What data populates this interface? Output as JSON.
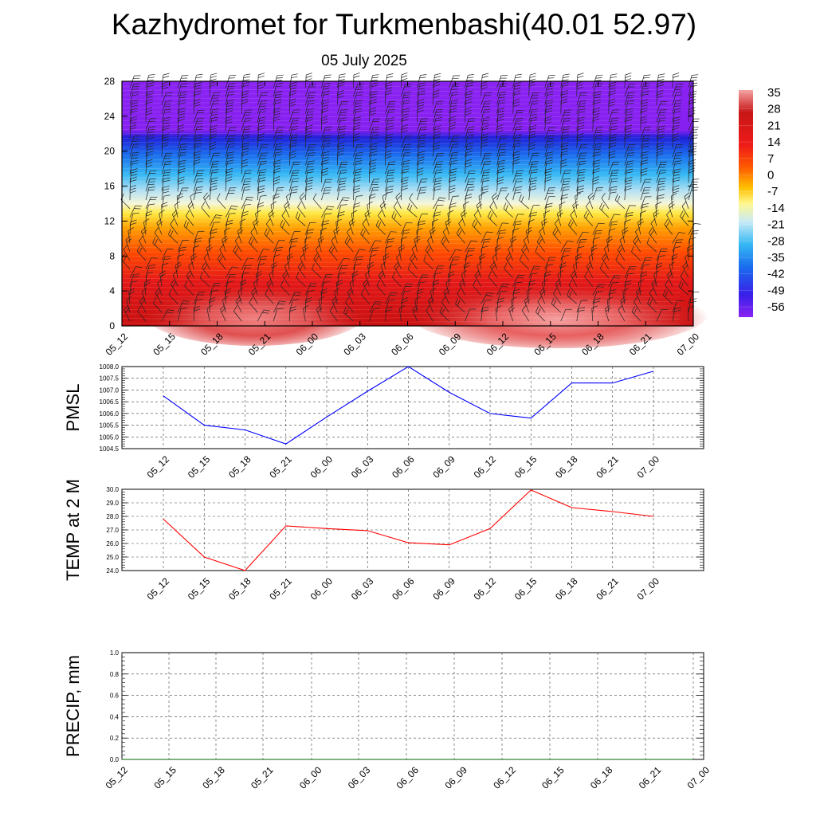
{
  "title": "Kazhydromet for Turkmenbashi(40.01 52.97)",
  "subtitle": "05 July 2025",
  "time_labels": [
    "05_12",
    "05_15",
    "05_18",
    "05_21",
    "06_00",
    "06_03",
    "06_06",
    "06_09",
    "06_12",
    "06_15",
    "06_18",
    "06_21",
    "07_00"
  ],
  "chart_data": [
    {
      "type": "heatmap",
      "y_ticks": [
        0,
        4,
        8,
        12,
        16,
        20,
        24,
        28
      ],
      "ylim": [
        0,
        28
      ],
      "colorbar": {
        "labels": [
          "35",
          "28",
          "21",
          "14",
          "7",
          "0",
          "-7",
          "-14",
          "-21",
          "-28",
          "-35",
          "-42",
          "-49",
          "-56"
        ],
        "range": [
          -63,
          38
        ]
      }
    },
    {
      "type": "line",
      "ylabel": "PMSL",
      "ylim": [
        1004.5,
        1008.0
      ],
      "y_ticks": [
        "1004.5",
        "1005.0",
        "1005.5",
        "1006.0",
        "1006.5",
        "1007.0",
        "1007.5",
        "1008.0"
      ],
      "color": "#0000ff",
      "values": [
        1006.75,
        1005.5,
        1005.3,
        1004.7,
        1005.85,
        1006.95,
        1008.0,
        1006.9,
        1006.0,
        1005.8,
        1007.3,
        1007.3,
        1007.8
      ]
    },
    {
      "type": "line",
      "ylabel": "TEMP at 2 M",
      "ylim": [
        24.0,
        30.0
      ],
      "y_ticks": [
        "24.0",
        "25.0",
        "26.0",
        "27.0",
        "28.0",
        "29.0",
        "30.0"
      ],
      "color": "#ff0000",
      "values": [
        27.8,
        25.0,
        24.0,
        27.3,
        27.1,
        26.95,
        26.05,
        25.9,
        27.1,
        29.95,
        28.65,
        28.35,
        28.0
      ]
    },
    {
      "type": "line",
      "ylabel": "PRECIP, mm",
      "ylim": [
        0.0,
        1.0
      ],
      "y_ticks": [
        "0.0",
        "0.2",
        "0.4",
        "0.6",
        "0.8",
        "1.0"
      ],
      "color": "#006400",
      "values": [
        0,
        0,
        0,
        0,
        0,
        0,
        0,
        0,
        0,
        0,
        0,
        0,
        0
      ]
    }
  ]
}
